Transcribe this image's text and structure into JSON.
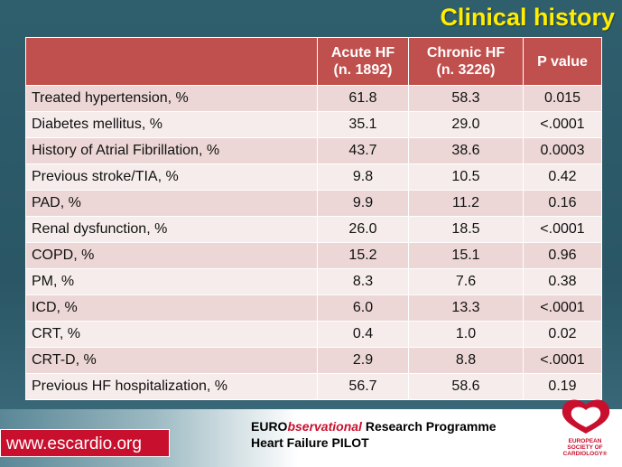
{
  "slide": {
    "title": "Clinical history"
  },
  "table": {
    "headers": [
      {
        "line1": "",
        "line2": ""
      },
      {
        "line1": "Acute HF",
        "line2": "(n. 1892)"
      },
      {
        "line1": "Chronic HF",
        "line2": "(n. 3226)"
      },
      {
        "line1": "P value",
        "line2": ""
      }
    ],
    "rows": [
      [
        "Treated hypertension, %",
        "61.8",
        "58.3",
        "0.015"
      ],
      [
        "Diabetes mellitus, %",
        "35.1",
        "29.0",
        "<.0001"
      ],
      [
        "History of Atrial Fibrillation, %",
        "43.7",
        "38.6",
        "0.0003"
      ],
      [
        "Previous stroke/TIA, %",
        "9.8",
        "10.5",
        "0.42"
      ],
      [
        "PAD, %",
        "9.9",
        "11.2",
        "0.16"
      ],
      [
        "Renal dysfunction, %",
        "26.0",
        "18.5",
        "<.0001"
      ],
      [
        "COPD, %",
        "15.2",
        "15.1",
        "0.96"
      ],
      [
        "PM, %",
        "8.3",
        "7.6",
        "0.38"
      ],
      [
        "ICD, %",
        "6.0",
        "13.3",
        "<.0001"
      ],
      [
        "CRT, %",
        "0.4",
        "1.0",
        "0.02"
      ],
      [
        "CRT-D, %",
        "2.9",
        "8.8",
        "<.0001"
      ],
      [
        "Previous HF hospitalization, %",
        "56.7",
        "58.6",
        "0.19"
      ]
    ]
  },
  "footer": {
    "site": "www.escardio.org",
    "program_prefix": "EURO",
    "program_emphasis": "bservational",
    "program_suffix": " Research Programme",
    "program_line2": "Heart Failure PILOT",
    "logo_icon": "esc-heart-logo",
    "logo_line1": "EUROPEAN",
    "logo_line2": "SOCIETY OF",
    "logo_line3": "CARDIOLOGY®"
  },
  "colors": {
    "background": "#2f5e6d",
    "title": "#ffee00",
    "header": "#c0504d",
    "row_odd": "#ecd7d6",
    "row_even": "#f6ecec",
    "brand_red": "#c8102e"
  }
}
